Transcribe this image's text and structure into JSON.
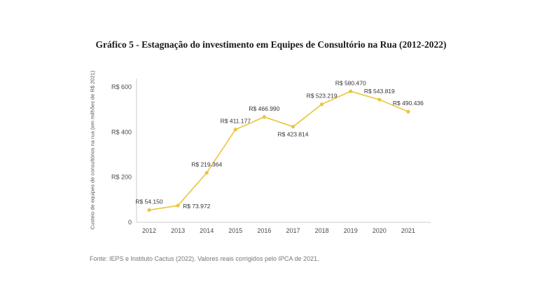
{
  "chart_data": {
    "type": "line",
    "title": "Gráfico 5 - Estagnação do investimento em Equipes de Consultório na Rua (2012-2022)",
    "source": "Fonte: IEPS e Instituto Cactus (2022). Valores reais corrigidos pelo IPCA de 2021.",
    "ylabel": "Custeio de equipes de consultórios na rua (em milhões de R$ 2021)",
    "xlabel": "",
    "categories": [
      "2012",
      "2013",
      "2014",
      "2015",
      "2016",
      "2017",
      "2018",
      "2019",
      "2020",
      "2021"
    ],
    "values": [
      54.15,
      73.972,
      219.364,
      411.177,
      466.99,
      423.814,
      523.219,
      580.47,
      543.819,
      490.436
    ],
    "point_labels": [
      "R$ 54.150",
      "R$ 73.972",
      "R$ 219.364",
      "R$ 411.177",
      "R$ 466.990",
      "R$ 423.814",
      "R$ 523.219",
      "R$ 580.470",
      "R$ 543.819",
      "R$ 490.436"
    ],
    "label_positions": [
      "above",
      "right",
      "above",
      "above",
      "above",
      "below",
      "above",
      "above",
      "above",
      "above"
    ],
    "ylim": [
      0,
      600
    ],
    "yticks": [
      0,
      200,
      400,
      600
    ],
    "ytick_labels": [
      "0",
      "R$ 200",
      "R$ 400",
      "R$ 600"
    ],
    "line_color": "#e9c53d",
    "axis_color": "#cccccc",
    "grid": false,
    "legend": "none"
  }
}
